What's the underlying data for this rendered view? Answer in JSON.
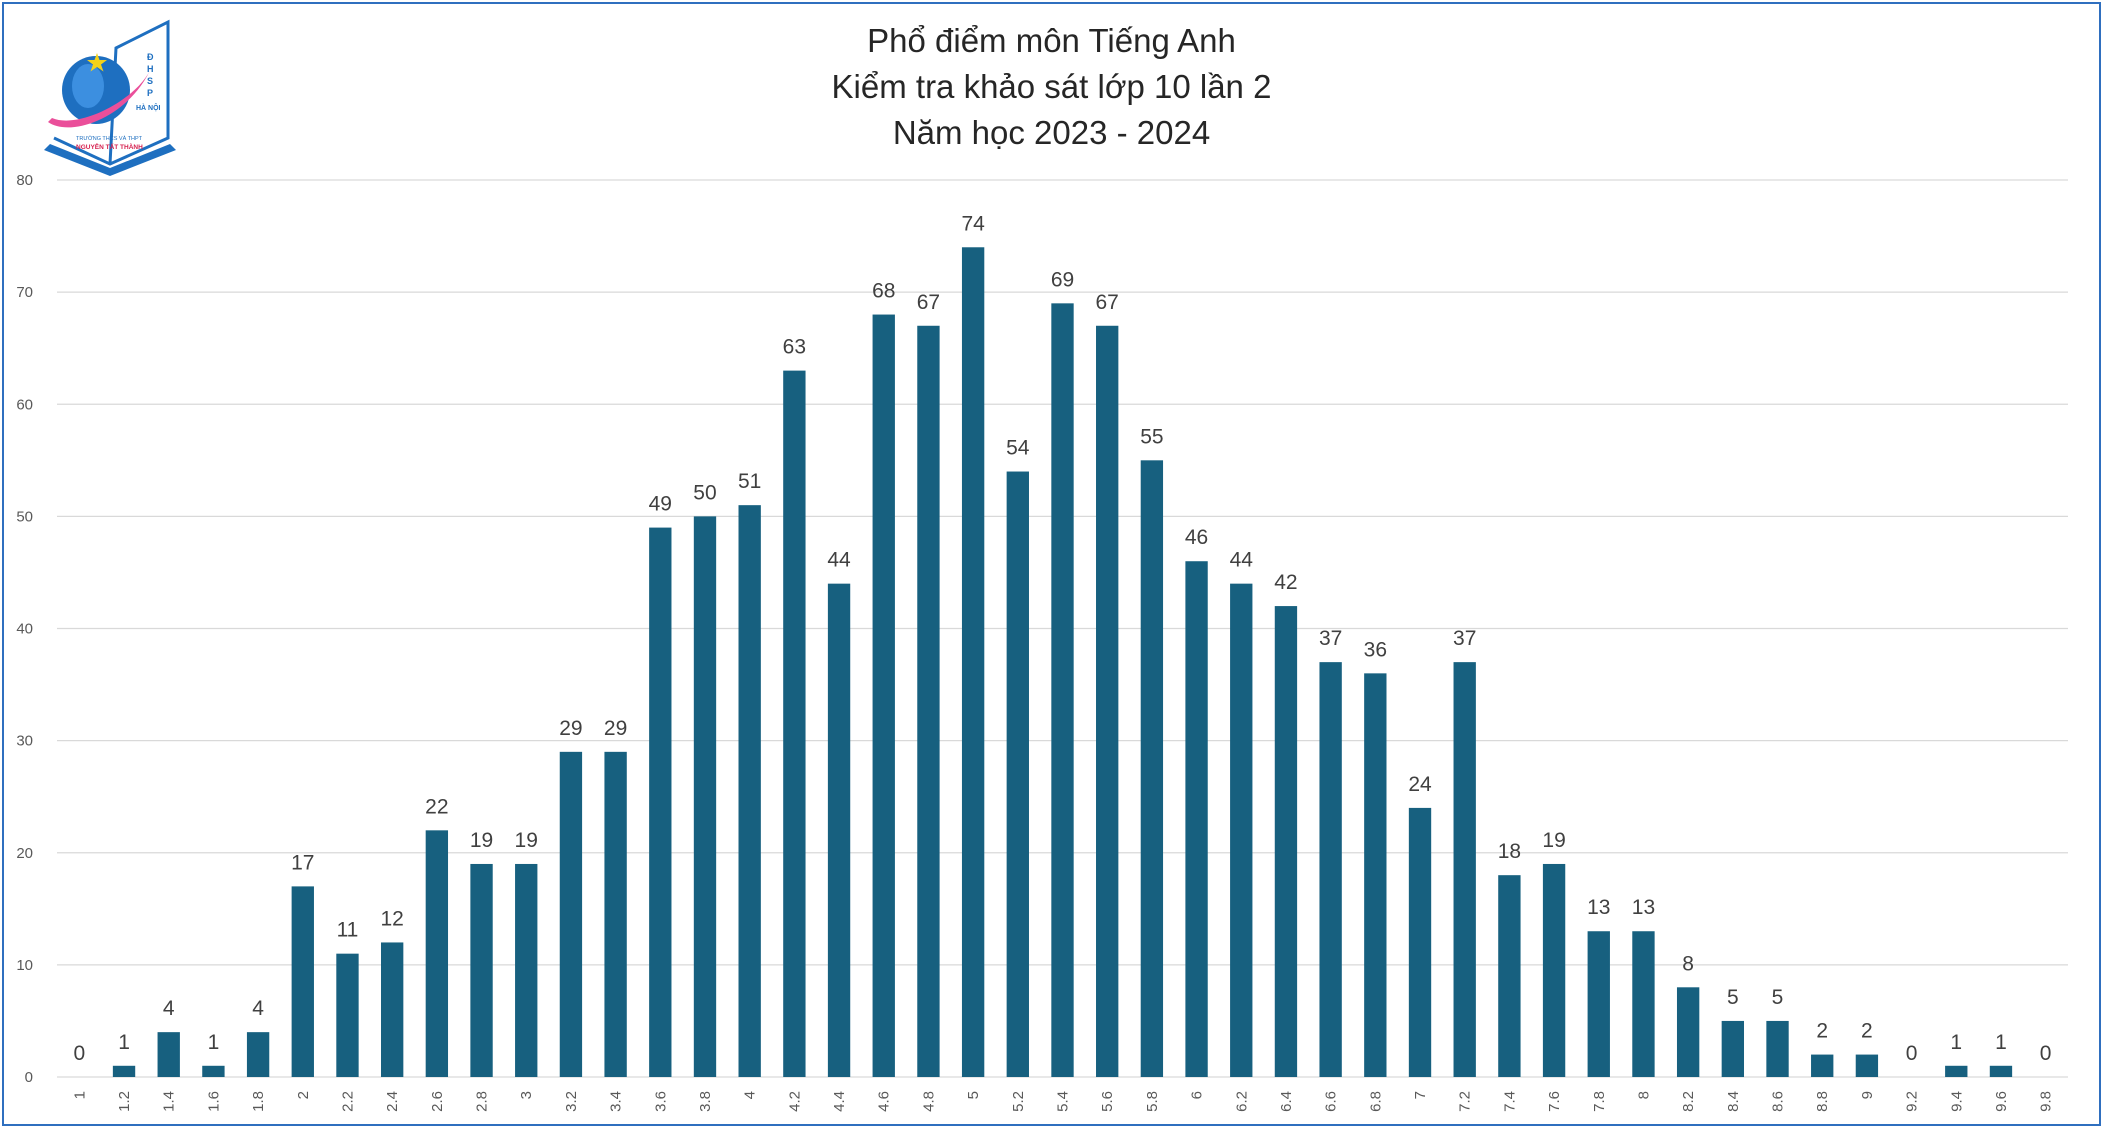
{
  "colors": {
    "bar": "#17607f",
    "grid": "#d9d9d9",
    "border": "#2f6fbf",
    "logo_blue": "#1e6fc0",
    "logo_pink": "#ea4f9a",
    "logo_star": "#f4d21a"
  },
  "logo": {
    "text_vertical": [
      "Đ",
      "H",
      "S",
      "P",
      "HÀ NỘI"
    ],
    "line1": "TRƯỜNG THCS VÀ THPT",
    "line2": "NGUYỄN TẤT THÀNH"
  },
  "chart_data": {
    "type": "bar",
    "title": [
      "Phổ điểm môn Tiếng Anh",
      "Kiểm tra khảo sát lớp 10 lần 2",
      "Năm học 2023 - 2024"
    ],
    "xlabel": "",
    "ylabel": "",
    "ylim": [
      0,
      80
    ],
    "yticks": [
      0,
      10,
      20,
      30,
      40,
      50,
      60,
      70,
      80
    ],
    "grid": true,
    "legend": "none",
    "categories": [
      "1",
      "1.2",
      "1.4",
      "1.6",
      "1.8",
      "2",
      "2.2",
      "2.4",
      "2.6",
      "2.8",
      "3",
      "3.2",
      "3.4",
      "3.6",
      "3.8",
      "4",
      "4.2",
      "4.4",
      "4.6",
      "4.8",
      "5",
      "5.2",
      "5.4",
      "5.6",
      "5.8",
      "6",
      "6.2",
      "6.4",
      "6.6",
      "6.8",
      "7",
      "7.2",
      "7.4",
      "7.6",
      "7.8",
      "8",
      "8.2",
      "8.4",
      "8.6",
      "8.8",
      "9",
      "9.2",
      "9.4",
      "9.6",
      "9.8"
    ],
    "values": [
      0,
      1,
      4,
      1,
      4,
      17,
      11,
      12,
      22,
      19,
      19,
      29,
      29,
      49,
      50,
      51,
      63,
      44,
      68,
      67,
      74,
      54,
      69,
      67,
      55,
      46,
      44,
      42,
      37,
      36,
      24,
      37,
      18,
      19,
      13,
      13,
      8,
      5,
      5,
      2,
      2,
      0,
      1,
      1,
      0
    ]
  }
}
